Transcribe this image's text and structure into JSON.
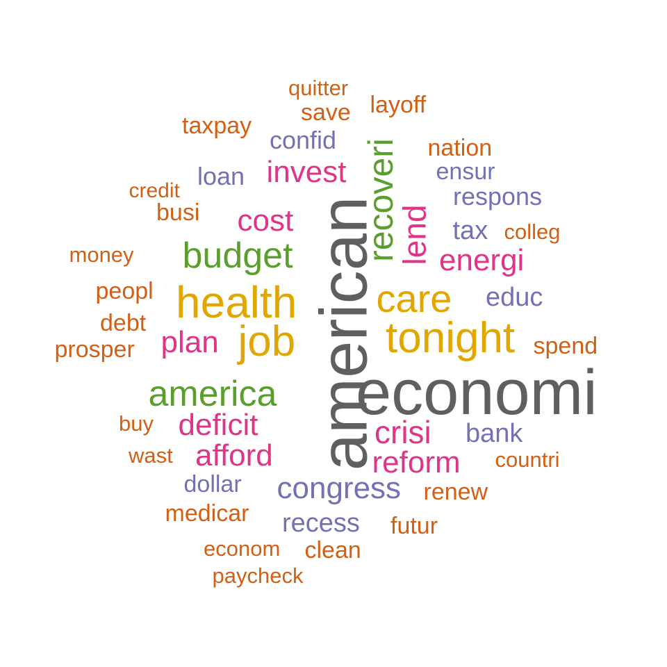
{
  "colors": {
    "gray": "#5f5f5f",
    "gold": "#e1a700",
    "green": "#5a9e2d",
    "magenta": "#df3488",
    "orange": "#d25f14",
    "purple": "#7271b3"
  },
  "words": [
    {
      "text": "american",
      "color": "#5f5f5f",
      "weight": 95,
      "rotated": true
    },
    {
      "text": "economi",
      "color": "#5f5f5f",
      "weight": 90
    },
    {
      "text": "health",
      "color": "#e1a700",
      "weight": 70
    },
    {
      "text": "tonight",
      "color": "#e1a700",
      "weight": 65
    },
    {
      "text": "job",
      "color": "#e1a700",
      "weight": 62
    },
    {
      "text": "care",
      "color": "#e1a700",
      "weight": 60
    },
    {
      "text": "recoveri",
      "color": "#5a9e2d",
      "weight": 55,
      "rotated": true
    },
    {
      "text": "america",
      "color": "#5a9e2d",
      "weight": 55
    },
    {
      "text": "budget",
      "color": "#5a9e2d",
      "weight": 55
    },
    {
      "text": "lend",
      "color": "#df3488",
      "weight": 48,
      "rotated": true
    },
    {
      "text": "invest",
      "color": "#df3488",
      "weight": 45
    },
    {
      "text": "cost",
      "color": "#df3488",
      "weight": 45
    },
    {
      "text": "energi",
      "color": "#df3488",
      "weight": 45
    },
    {
      "text": "plan",
      "color": "#df3488",
      "weight": 45
    },
    {
      "text": "deficit",
      "color": "#df3488",
      "weight": 45
    },
    {
      "text": "afford",
      "color": "#df3488",
      "weight": 45
    },
    {
      "text": "crisi",
      "color": "#df3488",
      "weight": 45
    },
    {
      "text": "reform",
      "color": "#df3488",
      "weight": 45
    },
    {
      "text": "congress",
      "color": "#7271b3",
      "weight": 45
    },
    {
      "text": "recess",
      "color": "#7271b3",
      "weight": 40
    },
    {
      "text": "educ",
      "color": "#7271b3",
      "weight": 40
    },
    {
      "text": "bank",
      "color": "#7271b3",
      "weight": 40
    },
    {
      "text": "tax",
      "color": "#7271b3",
      "weight": 40
    },
    {
      "text": "respons",
      "color": "#7271b3",
      "weight": 38
    },
    {
      "text": "confid",
      "color": "#7271b3",
      "weight": 38
    },
    {
      "text": "loan",
      "color": "#7271b3",
      "weight": 38
    },
    {
      "text": "ensur",
      "color": "#7271b3",
      "weight": 35
    },
    {
      "text": "dollar",
      "color": "#7271b3",
      "weight": 35
    },
    {
      "text": "quitter",
      "color": "#d25f14",
      "weight": 32
    },
    {
      "text": "save",
      "color": "#d25f14",
      "weight": 35
    },
    {
      "text": "layoff",
      "color": "#d25f14",
      "weight": 35
    },
    {
      "text": "taxpay",
      "color": "#d25f14",
      "weight": 35
    },
    {
      "text": "nation",
      "color": "#d25f14",
      "weight": 35
    },
    {
      "text": "credit",
      "color": "#d25f14",
      "weight": 30
    },
    {
      "text": "busi",
      "color": "#d25f14",
      "weight": 35
    },
    {
      "text": "colleg",
      "color": "#d25f14",
      "weight": 32
    },
    {
      "text": "money",
      "color": "#d25f14",
      "weight": 32
    },
    {
      "text": "peopl",
      "color": "#d25f14",
      "weight": 35
    },
    {
      "text": "debt",
      "color": "#d25f14",
      "weight": 35
    },
    {
      "text": "prosper",
      "color": "#d25f14",
      "weight": 35
    },
    {
      "text": "spend",
      "color": "#d25f14",
      "weight": 35
    },
    {
      "text": "buy",
      "color": "#d25f14",
      "weight": 32
    },
    {
      "text": "wast",
      "color": "#d25f14",
      "weight": 32
    },
    {
      "text": "countri",
      "color": "#d25f14",
      "weight": 32
    },
    {
      "text": "medicar",
      "color": "#d25f14",
      "weight": 35
    },
    {
      "text": "renew",
      "color": "#d25f14",
      "weight": 35
    },
    {
      "text": "futur",
      "color": "#d25f14",
      "weight": 35
    },
    {
      "text": "econom",
      "color": "#d25f14",
      "weight": 32
    },
    {
      "text": "clean",
      "color": "#d25f14",
      "weight": 35
    },
    {
      "text": "paycheck",
      "color": "#d25f14",
      "weight": 32
    }
  ]
}
